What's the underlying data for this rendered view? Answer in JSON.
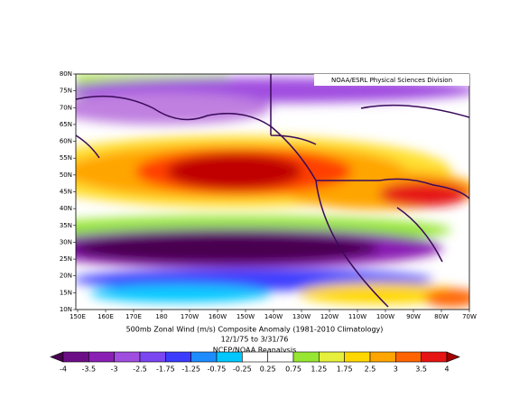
{
  "map": {
    "credit": "NOAA/ESRL Physical Sciences Division",
    "lat_labels": [
      "80N",
      "75N",
      "70N",
      "65N",
      "60N",
      "55N",
      "50N",
      "45N",
      "40N",
      "35N",
      "30N",
      "25N",
      "20N",
      "15N",
      "10N"
    ],
    "lon_labels": [
      "150E",
      "160E",
      "170E",
      "180",
      "170W",
      "160W",
      "150W",
      "140W",
      "130W",
      "120W",
      "110W",
      "100W",
      "90W",
      "80W",
      "70W"
    ],
    "title": "500mb Zonal Wind (m/s) Composite Anomaly (1981-2010 Climatology)",
    "period": "12/1/75  to 3/31/76",
    "source": "NCEP/NOAA Reanalysis"
  },
  "colorbar": {
    "labels": [
      "-4",
      "-3.5",
      "-3",
      "-2.5",
      "-1.75",
      "-1.25",
      "-0.75",
      "-0.25",
      "0.25",
      "0.75",
      "1.25",
      "1.75",
      "2.5",
      "3",
      "3.5",
      "4"
    ],
    "colors": [
      "#4a0050",
      "#6c0f86",
      "#8a1fb4",
      "#a04ee0",
      "#7a46f0",
      "#3c3cff",
      "#1e8cff",
      "#00c8ff",
      "#ffffff",
      "#ffffff",
      "#96e632",
      "#e6f03c",
      "#ffd700",
      "#ffa500",
      "#ff6400",
      "#e61414",
      "#a00000"
    ]
  }
}
